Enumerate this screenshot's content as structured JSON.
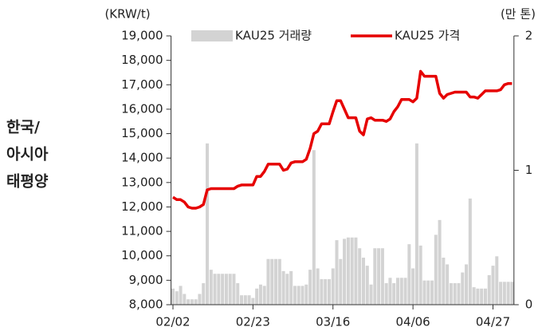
{
  "chart_data": {
    "type": "bar_line",
    "side_label": [
      "한국/",
      "아시아",
      "태평양"
    ],
    "y_label": "(KRW/t)",
    "y2_label": "(만 톤)",
    "categories": [
      "02/02",
      null,
      null,
      null,
      null,
      null,
      null,
      null,
      null,
      null,
      null,
      null,
      null,
      null,
      null,
      null,
      null,
      null,
      null,
      null,
      null,
      "02/23",
      null,
      null,
      null,
      null,
      null,
      null,
      null,
      null,
      null,
      null,
      null,
      null,
      null,
      null,
      null,
      null,
      null,
      null,
      null,
      null,
      "03/16",
      null,
      null,
      null,
      null,
      null,
      null,
      null,
      null,
      null,
      null,
      null,
      null,
      null,
      null,
      null,
      null,
      null,
      null,
      null,
      null,
      "04/06",
      null,
      null,
      null,
      null,
      null,
      null,
      null,
      null,
      null,
      null,
      null,
      null,
      null,
      null,
      null,
      null,
      null,
      null,
      null,
      null,
      "04/27",
      null,
      null,
      null,
      null,
      null
    ],
    "series": [
      {
        "name": "KAU25 거래량",
        "color": "#d3d3d3",
        "axis": "y2",
        "kind": "bar",
        "values": [
          0.12,
          0.1,
          0.14,
          0.08,
          0.04,
          0.04,
          0.04,
          0.08,
          0.16,
          1.2,
          0.26,
          0.23,
          0.23,
          0.23,
          0.23,
          0.23,
          0.23,
          0.16,
          0.07,
          0.07,
          0.07,
          0.05,
          0.12,
          0.15,
          0.14,
          0.34,
          0.34,
          0.34,
          0.34,
          0.25,
          0.23,
          0.25,
          0.14,
          0.14,
          0.14,
          0.15,
          0.26,
          1.15,
          0.27,
          0.19,
          0.19,
          0.19,
          0.27,
          0.48,
          0.34,
          0.49,
          0.5,
          0.5,
          0.5,
          0.42,
          0.35,
          0.29,
          0.15,
          0.42,
          0.42,
          0.42,
          0.16,
          0.2,
          0.16,
          0.2,
          0.2,
          0.2,
          0.45,
          0.27,
          1.2,
          0.44,
          0.18,
          0.18,
          0.18,
          0.52,
          0.63,
          0.35,
          0.3,
          0.16,
          0.16,
          0.16,
          0.24,
          0.3,
          0.79,
          0.13,
          0.12,
          0.12,
          0.12,
          0.22,
          0.29,
          0.36,
          0.17,
          0.17,
          0.17,
          0.17
        ]
      },
      {
        "name": "KAU25 가격",
        "color": "#e60000",
        "kind": "line",
        "values": [
          12400,
          12300,
          12300,
          12200,
          12000,
          11950,
          11950,
          12000,
          12100,
          12700,
          12750,
          12750,
          12750,
          12750,
          12750,
          12750,
          12750,
          12850,
          12900,
          12900,
          12900,
          12900,
          13250,
          13250,
          13450,
          13750,
          13750,
          13750,
          13750,
          13500,
          13550,
          13800,
          13850,
          13850,
          13850,
          13950,
          14400,
          15000,
          15100,
          15400,
          15400,
          15400,
          15900,
          16350,
          16350,
          16000,
          15650,
          15650,
          15650,
          15100,
          14950,
          15600,
          15650,
          15550,
          15550,
          15550,
          15500,
          15600,
          15900,
          16100,
          16400,
          16400,
          16400,
          16300,
          16450,
          17550,
          17350,
          17350,
          17350,
          17350,
          16650,
          16450,
          16600,
          16650,
          16700,
          16700,
          16700,
          16700,
          16500,
          16500,
          16450,
          16600,
          16750,
          16750,
          16750,
          16750,
          16800,
          17000,
          17050,
          17050
        ]
      }
    ],
    "ylim": [
      8000,
      19000
    ],
    "yticks": [
      {
        "value": 8000,
        "label": "8,000"
      },
      {
        "value": 9000,
        "label": "9,000"
      },
      {
        "value": 10000,
        "label": "10,000"
      },
      {
        "value": 11000,
        "label": "11,000"
      },
      {
        "value": 12000,
        "label": "12,000"
      },
      {
        "value": 13000,
        "label": "13,000"
      },
      {
        "value": 14000,
        "label": "14,000"
      },
      {
        "value": 15000,
        "label": "15,000"
      },
      {
        "value": 16000,
        "label": "16,000"
      },
      {
        "value": 17000,
        "label": "17,000"
      },
      {
        "value": 18000,
        "label": "18,000"
      },
      {
        "value": 19000,
        "label": "19,000"
      }
    ],
    "y2lim": [
      0,
      2
    ],
    "y2ticks": [
      0,
      1,
      2
    ]
  }
}
